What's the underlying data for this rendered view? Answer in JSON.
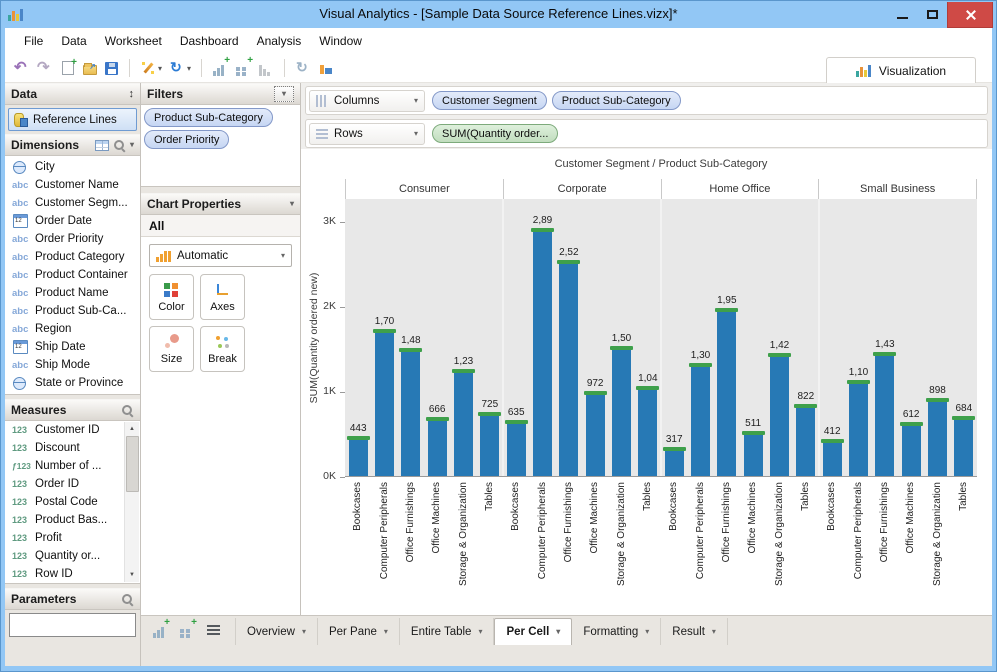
{
  "window": {
    "title": "Visual Analytics - [Sample Data Source Reference Lines.vizx]*"
  },
  "menu": {
    "items": [
      "File",
      "Data",
      "Worksheet",
      "Dashboard",
      "Analysis",
      "Window"
    ]
  },
  "toolbar": {
    "visualization_tab": "Visualization",
    "icons": [
      {
        "type": "icon",
        "name": "undo"
      },
      {
        "type": "icon",
        "name": "redo"
      },
      {
        "type": "icon",
        "name": "new-file"
      },
      {
        "type": "icon",
        "name": "open-folder"
      },
      {
        "type": "icon",
        "name": "save"
      },
      {
        "type": "sep"
      },
      {
        "type": "icon",
        "name": "wizard",
        "dropdown": true
      },
      {
        "type": "icon",
        "name": "refresh",
        "dropdown": true
      },
      {
        "type": "sep"
      },
      {
        "type": "icon",
        "name": "add-chart"
      },
      {
        "type": "icon",
        "name": "add-grid"
      },
      {
        "type": "icon",
        "name": "chart-levels"
      },
      {
        "type": "sep"
      },
      {
        "type": "icon",
        "name": "rotate"
      },
      {
        "type": "icon",
        "name": "chart-window"
      }
    ]
  },
  "data_panel": {
    "title": "Data",
    "source": "Reference Lines",
    "dimensions": {
      "label": "Dimensions",
      "items": [
        {
          "icon": "globe",
          "label": "City"
        },
        {
          "icon": "abc",
          "label": "Customer Name"
        },
        {
          "icon": "abc",
          "label": "Customer Segm..."
        },
        {
          "icon": "date",
          "label": "Order Date"
        },
        {
          "icon": "abc",
          "label": "Order Priority"
        },
        {
          "icon": "abc",
          "label": "Product Category"
        },
        {
          "icon": "abc",
          "label": "Product Container"
        },
        {
          "icon": "abc",
          "label": "Product Name"
        },
        {
          "icon": "abc",
          "label": "Product Sub-Ca..."
        },
        {
          "icon": "abc",
          "label": "Region"
        },
        {
          "icon": "date",
          "label": "Ship Date"
        },
        {
          "icon": "abc",
          "label": "Ship Mode"
        },
        {
          "icon": "globe",
          "label": "State or Province"
        }
      ]
    },
    "measures": {
      "label": "Measures",
      "items": [
        {
          "icon": "num",
          "label": "Customer ID"
        },
        {
          "icon": "num",
          "label": "Discount"
        },
        {
          "icon": "fxnum",
          "label": "Number of ..."
        },
        {
          "icon": "num",
          "label": "Order ID"
        },
        {
          "icon": "num",
          "label": "Postal Code"
        },
        {
          "icon": "num",
          "label": "Product Bas..."
        },
        {
          "icon": "num",
          "label": "Profit"
        },
        {
          "icon": "num",
          "label": "Quantity or..."
        },
        {
          "icon": "num",
          "label": "Row ID"
        }
      ]
    },
    "parameters": {
      "label": "Parameters",
      "value": ""
    }
  },
  "filters_panel": {
    "title": "Filters",
    "pills": [
      "Product Sub-Category",
      "Order Priority"
    ]
  },
  "chart_properties": {
    "title": "Chart Properties",
    "scope": "All",
    "mark_type": "Automatic",
    "buttons": [
      {
        "label": "Color",
        "icon": "color"
      },
      {
        "label": "Axes",
        "icon": "axes"
      },
      {
        "label": "Size",
        "icon": "size"
      },
      {
        "label": "Break",
        "icon": "break"
      }
    ]
  },
  "shelves": {
    "columns_label": "Columns",
    "columns_pills": [
      "Customer Segment",
      "Product Sub-Category"
    ],
    "rows_label": "Rows",
    "rows_pills": [
      "SUM(Quantity order..."
    ]
  },
  "chart_data": {
    "type": "bar",
    "title": "Customer Segment / Product Sub-Category",
    "ylabel": "SUM(Quantity ordered new)",
    "ylim": [
      0,
      3270
    ],
    "grid": "off",
    "legend": "none",
    "yticks": [
      {
        "label": "0K",
        "value": 0
      },
      {
        "label": "1K",
        "value": 1000
      },
      {
        "label": "2K",
        "value": 2000
      },
      {
        "label": "3K",
        "value": 3000
      }
    ],
    "categories": [
      "Bookcases",
      "Computer Peripherals",
      "Office Furnishings",
      "Office Machines",
      "Storage & Organization",
      "Tables"
    ],
    "panes": [
      {
        "name": "Consumer",
        "values": [
          443,
          1700,
          1480,
          666,
          1230,
          725
        ],
        "bar_labels": [
          "443",
          "1,70",
          "1,48",
          "666",
          "1,23",
          "725"
        ]
      },
      {
        "name": "Corporate",
        "values": [
          635,
          2890,
          2520,
          972,
          1500,
          1040
        ],
        "bar_labels": [
          "635",
          "2,89",
          "2,52",
          "972",
          "1,50",
          "1,04"
        ]
      },
      {
        "name": "Home Office",
        "values": [
          317,
          1300,
          1950,
          511,
          1420,
          822
        ],
        "bar_labels": [
          "317",
          "1,30",
          "1,95",
          "511",
          "1,42",
          "822"
        ]
      },
      {
        "name": "Small Business",
        "values": [
          412,
          1100,
          1430,
          612,
          898,
          684
        ],
        "bar_labels": [
          "412",
          "1,10",
          "1,43",
          "612",
          "898",
          "684"
        ]
      }
    ],
    "bar_color": "#2779b5",
    "reference_cap_color": "#3ea04b",
    "plot_background": "#e8e8e8"
  },
  "bottom_bar": {
    "icons": [
      {
        "name": "add-chart"
      },
      {
        "name": "add-grid"
      },
      {
        "name": "list"
      }
    ],
    "tabs": [
      {
        "label": "Overview",
        "active": false
      },
      {
        "label": "Per Pane",
        "active": false
      },
      {
        "label": "Entire Table",
        "active": false
      },
      {
        "label": "Per Cell",
        "active": true
      },
      {
        "label": "Formatting",
        "active": false
      },
      {
        "label": "Result",
        "active": false
      }
    ]
  },
  "colors": {
    "titlebar": "#92c7f5",
    "close_button": "#cf4a46",
    "pill_blue_bg": "#cfdcf6",
    "pill_blue_border": "#8398c8",
    "pill_green_bg": "#cde3cb",
    "pill_green_border": "#7daa7b",
    "panel_bg": "#e9e6e1"
  }
}
